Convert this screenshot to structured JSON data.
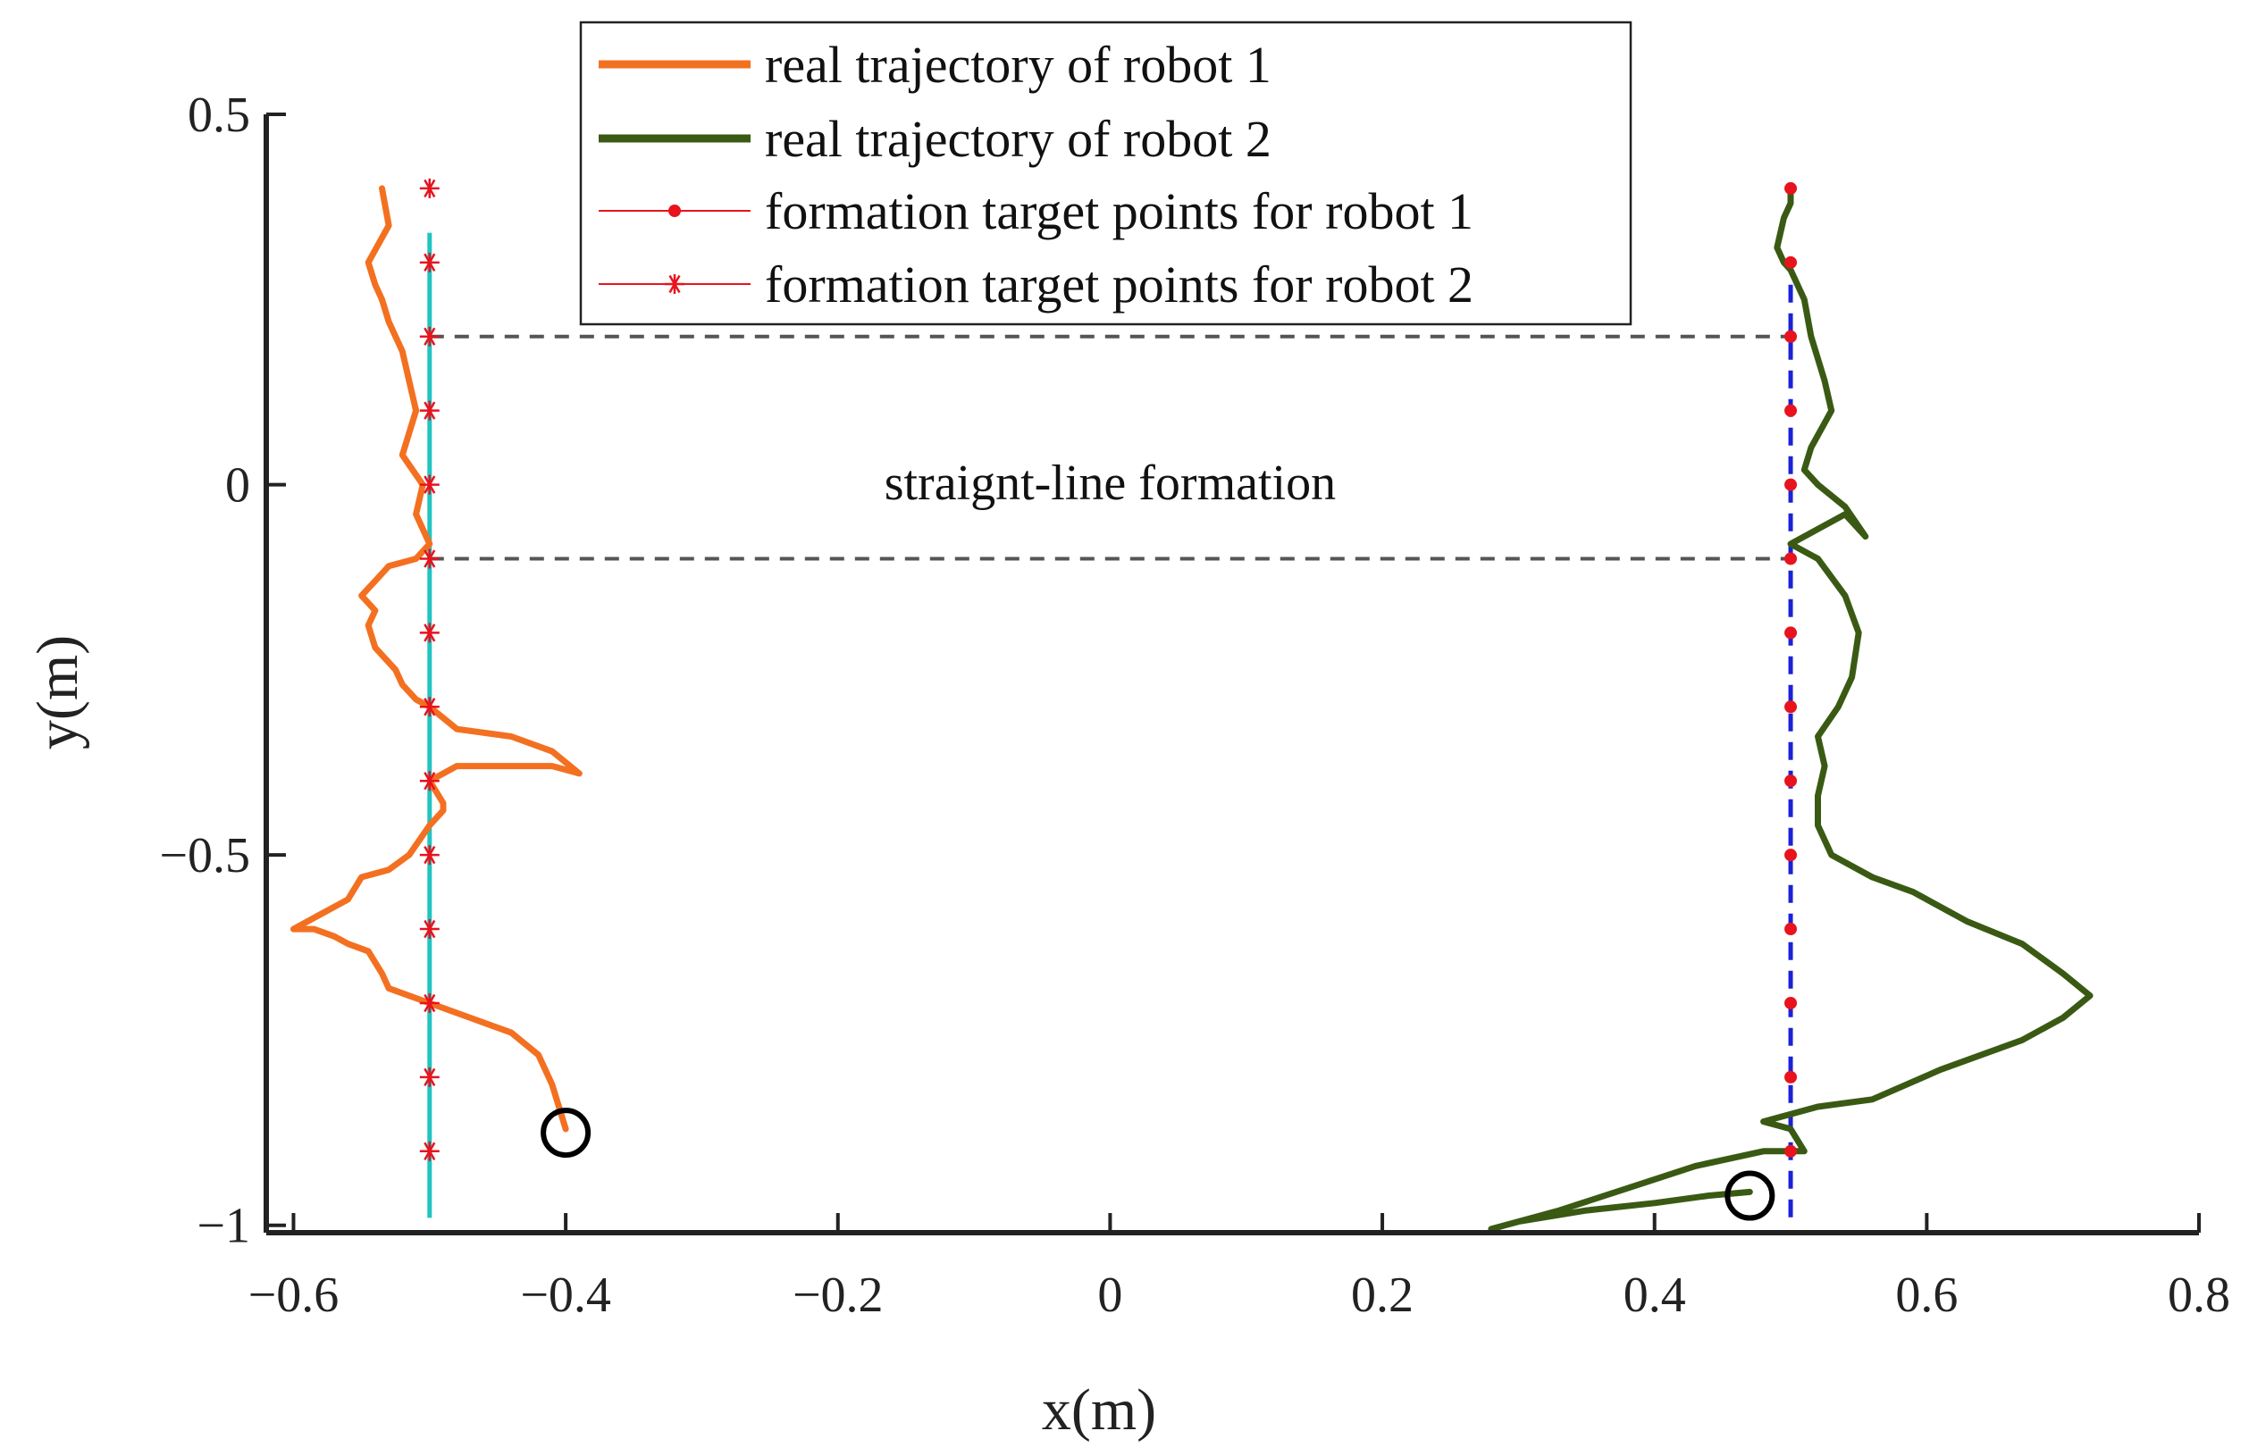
{
  "chart_data": {
    "type": "line",
    "title": "",
    "xlabel": "x(m)",
    "ylabel": "y(m)",
    "xlim": [
      -0.62,
      0.8
    ],
    "ylim": [
      -1.01,
      0.5
    ],
    "xticks": [
      -0.6,
      -0.4,
      -0.2,
      0,
      0.2,
      0.4,
      0.6,
      0.8
    ],
    "yticks": [
      -1,
      -0.5,
      0,
      0.5
    ],
    "xtick_labels": [
      "−0.6",
      "−0.4",
      "−0.2",
      "0",
      "0.2",
      "0.4",
      "0.6",
      "0.8"
    ],
    "ytick_labels": [
      "−1",
      "−0.5",
      "0",
      "0.5"
    ],
    "grid": false,
    "legend_position": "top-center",
    "colors": {
      "robot1": "#f37021",
      "robot2": "#3a5a14",
      "targets": "#e8131d",
      "cyan_line": "#20c4c0",
      "blue_dashed": "#1c22d6",
      "formation_dashed": "#555555",
      "circle": "#000000",
      "axis": "#222222"
    },
    "series": [
      {
        "name": "real trajectory of robot 1",
        "style": "solid-thick",
        "x": [
          -0.4,
          -0.405,
          -0.41,
          -0.42,
          -0.44,
          -0.47,
          -0.5,
          -0.53,
          -0.535,
          -0.545,
          -0.56,
          -0.57,
          -0.585,
          -0.6,
          -0.58,
          -0.56,
          -0.55,
          -0.53,
          -0.515,
          -0.5,
          -0.49,
          -0.49,
          -0.5,
          -0.48,
          -0.44,
          -0.41,
          -0.39,
          -0.41,
          -0.44,
          -0.48,
          -0.5,
          -0.51,
          -0.52,
          -0.525,
          -0.54,
          -0.545,
          -0.54,
          -0.55,
          -0.54,
          -0.53,
          -0.51,
          -0.5,
          -0.51,
          -0.505,
          -0.52,
          -0.51,
          -0.515,
          -0.52,
          -0.53,
          -0.535,
          -0.54,
          -0.545,
          -0.53,
          -0.535
        ],
        "y": [
          -0.87,
          -0.84,
          -0.81,
          -0.77,
          -0.74,
          -0.72,
          -0.7,
          -0.68,
          -0.66,
          -0.63,
          -0.62,
          -0.61,
          -0.6,
          -0.6,
          -0.58,
          -0.56,
          -0.53,
          -0.52,
          -0.5,
          -0.46,
          -0.44,
          -0.43,
          -0.4,
          -0.38,
          -0.38,
          -0.38,
          -0.39,
          -0.36,
          -0.34,
          -0.33,
          -0.3,
          -0.29,
          -0.27,
          -0.25,
          -0.22,
          -0.19,
          -0.17,
          -0.15,
          -0.13,
          -0.11,
          -0.1,
          -0.08,
          -0.04,
          0.0,
          0.04,
          0.1,
          0.14,
          0.18,
          0.22,
          0.25,
          0.27,
          0.3,
          0.35,
          0.4
        ]
      },
      {
        "name": "real trajectory of robot 2",
        "style": "solid-thick",
        "x": [
          0.47,
          0.44,
          0.4,
          0.35,
          0.3,
          0.28,
          0.33,
          0.38,
          0.43,
          0.48,
          0.51,
          0.5,
          0.48,
          0.52,
          0.56,
          0.61,
          0.67,
          0.7,
          0.72,
          0.7,
          0.67,
          0.63,
          0.59,
          0.56,
          0.53,
          0.52,
          0.52,
          0.525,
          0.52,
          0.535,
          0.545,
          0.55,
          0.54,
          0.52,
          0.5,
          0.52,
          0.54,
          0.555,
          0.54,
          0.52,
          0.51,
          0.515,
          0.53,
          0.525,
          0.515,
          0.51,
          0.5,
          0.495,
          0.49,
          0.495,
          0.5,
          0.5
        ],
        "y": [
          -0.955,
          -0.96,
          -0.97,
          -0.98,
          -0.995,
          -1.005,
          -0.98,
          -0.95,
          -0.92,
          -0.9,
          -0.9,
          -0.87,
          -0.86,
          -0.84,
          -0.83,
          -0.79,
          -0.75,
          -0.72,
          -0.69,
          -0.66,
          -0.62,
          -0.59,
          -0.55,
          -0.53,
          -0.5,
          -0.46,
          -0.42,
          -0.38,
          -0.34,
          -0.3,
          -0.26,
          -0.2,
          -0.15,
          -0.1,
          -0.08,
          -0.06,
          -0.04,
          -0.07,
          -0.03,
          0.0,
          0.02,
          0.05,
          0.1,
          0.14,
          0.2,
          0.25,
          0.29,
          0.3,
          0.32,
          0.36,
          0.38,
          0.4
        ]
      },
      {
        "name": "formation target points for robot 1",
        "style": "dot-markers",
        "x": [
          0.5,
          0.5,
          0.5,
          0.5,
          0.5,
          0.5,
          0.5,
          0.5,
          0.5,
          0.5,
          0.5,
          0.5,
          0.5,
          0.5
        ],
        "y": [
          0.4,
          0.3,
          0.2,
          0.1,
          0.0,
          -0.1,
          -0.2,
          -0.3,
          -0.4,
          -0.5,
          -0.6,
          -0.7,
          -0.8,
          -0.9
        ]
      },
      {
        "name": "formation target points for robot 2",
        "style": "star-markers",
        "x": [
          -0.5,
          -0.5,
          -0.5,
          -0.5,
          -0.5,
          -0.5,
          -0.5,
          -0.5,
          -0.5,
          -0.5,
          -0.5,
          -0.5,
          -0.5,
          -0.5
        ],
        "y": [
          0.4,
          0.3,
          0.2,
          0.1,
          0.0,
          -0.1,
          -0.2,
          -0.3,
          -0.4,
          -0.5,
          -0.6,
          -0.7,
          -0.8,
          -0.9
        ]
      }
    ],
    "reference_lines": [
      {
        "name": "cyan-vertical",
        "x": [
          -0.5,
          -0.5
        ],
        "y": [
          0.34,
          -0.99
        ]
      },
      {
        "name": "blue-dashed-vertical",
        "x": [
          0.5,
          0.5
        ],
        "y": [
          0.27,
          -0.99
        ]
      },
      {
        "name": "formation-top",
        "x": [
          -0.5,
          0.5
        ],
        "y": [
          0.2,
          0.2
        ]
      },
      {
        "name": "formation-bottom",
        "x": [
          -0.5,
          0.5
        ],
        "y": [
          -0.1,
          -0.1
        ]
      }
    ],
    "start_markers": [
      {
        "name": "robot1-start",
        "x": -0.4,
        "y": -0.875
      },
      {
        "name": "robot2-start",
        "x": 0.47,
        "y": -0.96
      }
    ],
    "annotations": [
      {
        "text": "straignt-line formation",
        "x": 0.0,
        "y": -0.02
      }
    ]
  }
}
